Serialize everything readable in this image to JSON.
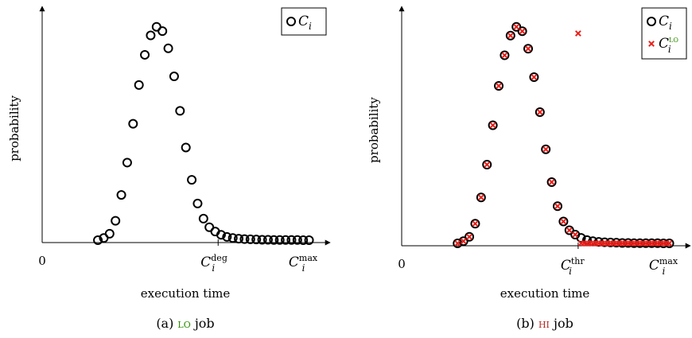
{
  "chart_data": [
    {
      "type": "scatter",
      "caption": {
        "prefix": "(a)",
        "word_label": "lo",
        "suffix": "job",
        "word_color": "#2e8b00"
      },
      "xlabel": "execution time",
      "ylabel": "probability",
      "x_ticks": [
        {
          "x": 0,
          "label": "0",
          "sup": ""
        },
        {
          "x": 12,
          "label": "C",
          "sub": "i",
          "sup": "deg",
          "tick_mark": true
        },
        {
          "x": 18,
          "label": "C",
          "sub": "i",
          "sup": "max",
          "tick_mark": false
        }
      ],
      "xlim": [
        0,
        19.2
      ],
      "ylim": [
        0,
        1.0
      ],
      "legend": {
        "placement": "top-right",
        "entries": [
          {
            "marker": "circle",
            "label": "C",
            "sub": "i",
            "sup": ""
          }
        ]
      },
      "series": [
        {
          "marker": "circle",
          "color": "#000000",
          "x": [
            3.8,
            4.2,
            4.6,
            5.0,
            5.4,
            5.8,
            6.2,
            6.6,
            7.0,
            7.4,
            7.8,
            8.2,
            8.6,
            9.0,
            9.4,
            9.8,
            10.2,
            10.6,
            11.0,
            11.4,
            11.8,
            12.2,
            12.6,
            13.0,
            13.4,
            13.8,
            14.2,
            14.6,
            15.0,
            15.4,
            15.8,
            16.2,
            16.6,
            17.0,
            17.4,
            17.8,
            18.2
          ],
          "y": [
            0.0,
            0.01,
            0.03,
            0.09,
            0.21,
            0.36,
            0.54,
            0.72,
            0.86,
            0.95,
            0.99,
            0.97,
            0.89,
            0.76,
            0.6,
            0.43,
            0.28,
            0.17,
            0.1,
            0.06,
            0.04,
            0.025,
            0.015,
            0.01,
            0.007,
            0.005,
            0.004,
            0.003,
            0.002,
            0.002,
            0.001,
            0.001,
            0.001,
            0.001,
            0.001,
            0.0,
            0.0
          ]
        }
      ]
    },
    {
      "type": "scatter",
      "caption": {
        "prefix": "(b)",
        "word_label": "hi",
        "suffix": "job",
        "word_color": "#b3261e"
      },
      "xlabel": "execution time",
      "ylabel": "probability",
      "x_ticks": [
        {
          "x": 0,
          "label": "0",
          "sup": ""
        },
        {
          "x": 12,
          "label": "C",
          "sub": "i",
          "sup": "thr",
          "tick_mark": true
        },
        {
          "x": 18,
          "label": "C",
          "sub": "i",
          "sup": "max",
          "tick_mark": false
        }
      ],
      "xlim": [
        0,
        19.2
      ],
      "ylim": [
        0,
        1.0
      ],
      "legend": {
        "placement": "top-right",
        "entries": [
          {
            "marker": "circle",
            "label": "C",
            "sub": "i",
            "sup": ""
          },
          {
            "marker": "cross",
            "label": "C",
            "sub": "i",
            "sup": "LO",
            "sup_color": "#2e8b00"
          }
        ]
      },
      "series": [
        {
          "marker": "circle",
          "color": "#000000",
          "x": [
            3.8,
            4.2,
            4.6,
            5.0,
            5.4,
            5.8,
            6.2,
            6.6,
            7.0,
            7.4,
            7.8,
            8.2,
            8.6,
            9.0,
            9.4,
            9.8,
            10.2,
            10.6,
            11.0,
            11.4,
            11.8,
            12.2,
            12.6,
            13.0,
            13.4,
            13.8,
            14.2,
            14.6,
            15.0,
            15.4,
            15.8,
            16.2,
            16.6,
            17.0,
            17.4,
            17.8,
            18.2
          ],
          "y": [
            0.0,
            0.01,
            0.03,
            0.09,
            0.21,
            0.36,
            0.54,
            0.72,
            0.86,
            0.95,
            0.99,
            0.97,
            0.89,
            0.76,
            0.6,
            0.43,
            0.28,
            0.17,
            0.1,
            0.06,
            0.04,
            0.025,
            0.015,
            0.01,
            0.007,
            0.005,
            0.004,
            0.003,
            0.002,
            0.002,
            0.001,
            0.001,
            0.001,
            0.001,
            0.001,
            0.0,
            0.0
          ]
        },
        {
          "marker": "cross",
          "color": "#e8201a",
          "x": [
            3.8,
            4.2,
            4.6,
            5.0,
            5.4,
            5.8,
            6.2,
            6.6,
            7.0,
            7.4,
            7.8,
            8.2,
            8.6,
            9.0,
            9.4,
            9.8,
            10.2,
            10.6,
            11.0,
            11.4,
            11.8,
            12.0,
            12.2,
            12.4,
            12.6,
            12.8,
            13.0,
            13.2,
            13.4,
            13.6,
            13.8,
            14.0,
            14.2,
            14.4,
            14.6,
            14.8,
            15.0,
            15.2,
            15.4,
            15.6,
            15.8,
            16.0,
            16.2,
            16.4,
            16.6,
            16.8,
            17.0,
            17.2,
            17.4,
            17.6,
            17.8,
            18.0,
            18.2
          ],
          "y": [
            0.0,
            0.01,
            0.03,
            0.09,
            0.21,
            0.36,
            0.54,
            0.72,
            0.86,
            0.95,
            0.99,
            0.97,
            0.89,
            0.76,
            0.6,
            0.43,
            0.28,
            0.17,
            0.1,
            0.06,
            0.04,
            0.96,
            0,
            0,
            0,
            0,
            0,
            0,
            0,
            0,
            0,
            0,
            0,
            0,
            0,
            0,
            0,
            0,
            0,
            0,
            0,
            0,
            0,
            0,
            0,
            0,
            0,
            0,
            0,
            0,
            0,
            0,
            0
          ]
        }
      ]
    }
  ]
}
